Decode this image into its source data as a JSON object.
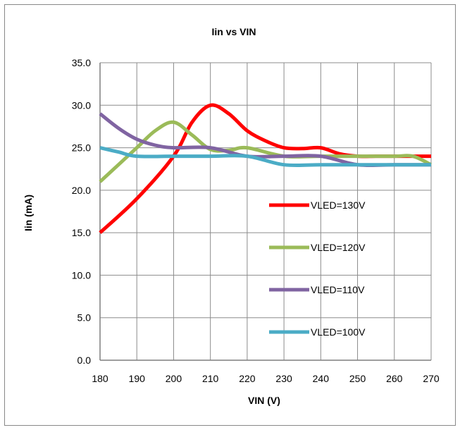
{
  "chart_data": {
    "type": "line",
    "title": "Iin vs VIN",
    "xlabel": "VIN (V)",
    "ylabel": "Iin (mA)",
    "xlim": [
      180,
      270
    ],
    "ylim": [
      0,
      35
    ],
    "x_ticks": [
      "180",
      "190",
      "200",
      "210",
      "220",
      "230",
      "240",
      "250",
      "260",
      "270"
    ],
    "y_ticks": [
      "0.0",
      "5.0",
      "10.0",
      "15.0",
      "20.0",
      "25.0",
      "30.0",
      "35.0"
    ],
    "grid": true,
    "legend_position": "right",
    "series": [
      {
        "name": "VLED=130V",
        "color": "#ff0000",
        "x": [
          180,
          190,
          200,
          205,
          210,
          215,
          220,
          225,
          230,
          235,
          240,
          245,
          250,
          255,
          260,
          265,
          270
        ],
        "y": [
          15.0,
          19.0,
          24.0,
          28.0,
          30.0,
          29.0,
          27.0,
          25.8,
          25.0,
          24.9,
          25.0,
          24.3,
          24.0,
          24.0,
          24.0,
          24.0,
          24.0
        ]
      },
      {
        "name": "VLED=120V",
        "color": "#9bbb59",
        "x": [
          180,
          190,
          195,
          200,
          205,
          210,
          215,
          220,
          230,
          240,
          250,
          260,
          265,
          270
        ],
        "y": [
          21.0,
          25.0,
          27.0,
          28.0,
          26.5,
          24.8,
          24.7,
          25.0,
          24.0,
          24.0,
          24.0,
          24.0,
          24.0,
          23.0
        ]
      },
      {
        "name": "VLED=110V",
        "color": "#8064a2",
        "x": [
          180,
          185,
          190,
          195,
          200,
          210,
          220,
          230,
          240,
          250,
          260,
          270
        ],
        "y": [
          29.0,
          27.3,
          26.0,
          25.3,
          25.0,
          25.0,
          24.0,
          24.0,
          24.0,
          23.0,
          23.0,
          23.0
        ]
      },
      {
        "name": "VLED=100V",
        "color": "#4bacc6",
        "x": [
          180,
          185,
          190,
          200,
          210,
          220,
          230,
          240,
          250,
          260,
          270
        ],
        "y": [
          25.0,
          24.5,
          24.0,
          24.0,
          24.0,
          24.0,
          23.0,
          23.0,
          23.0,
          23.0,
          23.0
        ]
      }
    ]
  }
}
